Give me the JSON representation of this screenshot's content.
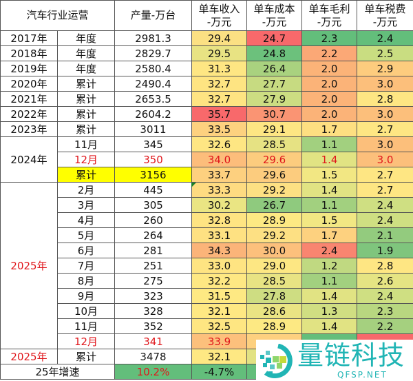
{
  "header": {
    "col1": "汽车行业运营",
    "col3": "产量-万台",
    "col4": [
      "单车收入",
      "-万元"
    ],
    "col5": [
      "单车成本",
      "-万元"
    ],
    "col6": [
      "单车毛利",
      "-万元"
    ],
    "col7": [
      "单车税费",
      "-万元"
    ]
  },
  "rows": [
    {
      "year": "2017年",
      "period": "年度",
      "output": "2981.3",
      "rev": "29.4",
      "cost": "24.7",
      "margin": "2.3",
      "tax": "2.4",
      "c": [
        "#fbe083",
        "#f8696b",
        "#63be7b",
        "#63be7b"
      ]
    },
    {
      "year": "2018年",
      "period": "年度",
      "output": "2829.7",
      "rev": "29.5",
      "cost": "24.8",
      "margin": "2.2",
      "tax": "2.5",
      "c": [
        "#e8e383",
        "#6cc17c",
        "#fba876",
        "#c9dd81"
      ]
    },
    {
      "year": "2019年",
      "period": "年度",
      "output": "2580.4",
      "rev": "31.3",
      "cost": "26.4",
      "margin": "2.0",
      "tax": "2.9",
      "c": [
        "#fee683",
        "#a9d27f",
        "#fbb378",
        "#fdcc7e"
      ]
    },
    {
      "year": "2020年",
      "period": "累计",
      "output": "2490.4",
      "rev": "32.7",
      "cost": "27.7",
      "margin": "2.0",
      "tax": "3.0",
      "c": [
        "#fee482",
        "#c7db81",
        "#fbb378",
        "#fcbf7b"
      ]
    },
    {
      "year": "2021年",
      "period": "累计",
      "output": "2653.5",
      "rev": "32.7",
      "cost": "27.9",
      "margin": "2.0",
      "tax": "2.8",
      "c": [
        "#fee482",
        "#ccdd82",
        "#fbb378",
        "#fee683"
      ]
    },
    {
      "year": "2022年",
      "period": "累计",
      "output": "2604.2",
      "rev": "35.7",
      "cost": "30.7",
      "margin": "2.0",
      "tax": "3.0",
      "c": [
        "#f8696b",
        "#fa9473",
        "#fbb378",
        "#fcbf7b"
      ]
    },
    {
      "year": "2023年",
      "period": "累计",
      "output": "3011",
      "rev": "33.5",
      "cost": "29.1",
      "margin": "1.7",
      "tax": "2.7",
      "c": [
        "#fdd17f",
        "#fde683",
        "#fedf81",
        "#fee683"
      ]
    }
  ],
  "rows2024": {
    "year": "2024年",
    "items": [
      {
        "period": "11月",
        "output": "345",
        "rev": "32.6",
        "cost": "28.5",
        "margin": "1.1",
        "tax": "3.0",
        "red": false,
        "c": [
          "#fee683",
          "#e6e283",
          "#a2d07f",
          "#fcbf7b"
        ]
      },
      {
        "period": "12月",
        "output": "350",
        "rev": "34.0",
        "cost": "29.6",
        "margin": "1.4",
        "tax": "3.0",
        "red": true,
        "c": [
          "#fcbd7b",
          "#fccc7e",
          "#e1e383",
          "#fcbf7b"
        ]
      },
      {
        "period": "累计",
        "output": "3156",
        "rev": "33.7",
        "cost": "29.6",
        "margin": "1.5",
        "tax": "2.7",
        "red": false,
        "hl": true,
        "c": [
          "#fdd07f",
          "#fccc7e",
          "#f2e783",
          "#fee683"
        ]
      }
    ]
  },
  "rows2025": {
    "year": "2025年",
    "items": [
      {
        "period": "2月",
        "output": "445",
        "rev": "33.3",
        "cost": "29.2",
        "margin": "1.4",
        "tax": "2.7",
        "c": [
          "#fedb81",
          "#fde083",
          "#e1e383",
          "#fee683"
        ]
      },
      {
        "period": "3月",
        "output": "305",
        "rev": "30.2",
        "cost": "26.7",
        "margin": "1.1",
        "tax": "2.4",
        "c": [
          "#eae583",
          "#8fca7e",
          "#a2d07f",
          "#cfdf82"
        ]
      },
      {
        "period": "4月",
        "output": "260",
        "rev": "32.8",
        "cost": "28.9",
        "margin": "1.5",
        "tax": "2.4",
        "c": [
          "#fee482",
          "#fde983",
          "#f2e783",
          "#cfdf82"
        ]
      },
      {
        "period": "5月",
        "output": "264",
        "rev": "33.1",
        "cost": "29.2",
        "margin": "1.7",
        "tax": "2.1",
        "c": [
          "#fee182",
          "#fde083",
          "#fdd17f",
          "#93cb7e"
        ]
      },
      {
        "period": "6月",
        "output": "281",
        "rev": "34.3",
        "cost": "30.0",
        "margin": "2.4",
        "tax": "1.9",
        "c": [
          "#fbb479",
          "#fcc07c",
          "#f98570",
          "#7fc57d"
        ]
      },
      {
        "period": "7月",
        "output": "251",
        "rev": "33.0",
        "cost": "29.0",
        "margin": "1.2",
        "tax": "2.8",
        "c": [
          "#fee482",
          "#fde783",
          "#c0d981",
          "#fee683"
        ]
      },
      {
        "period": "8月",
        "output": "275",
        "rev": "32.2",
        "cost": "28.5",
        "margin": "1.1",
        "tax": "2.6",
        "c": [
          "#fee883",
          "#e8e383",
          "#a2d07f",
          "#e5e483"
        ]
      },
      {
        "period": "9月",
        "output": "323",
        "rev": "31.5",
        "cost": "27.8",
        "margin": "1.4",
        "tax": "2.4",
        "c": [
          "#fee983",
          "#cedd82",
          "#e1e383",
          "#cfdf82"
        ]
      },
      {
        "period": "10月",
        "output": "328",
        "rev": "32.1",
        "cost": "28.6",
        "margin": "1.3",
        "tax": "2.3",
        "c": [
          "#fee883",
          "#eae483",
          "#d0de82",
          "#b8d780"
        ]
      },
      {
        "period": "11月",
        "output": "352",
        "rev": "32.5",
        "cost": "28.9",
        "margin": "1.4",
        "tax": "2.2",
        "c": [
          "#fee682",
          "#fde983",
          "#e1e383",
          "#a5d07f"
        ]
      },
      {
        "period": "12月",
        "output": "341",
        "rev": "33.9",
        "cost": "",
        "margin": "",
        "tax": "",
        "red": true,
        "c": [
          "#fcc07c",
          "#fdd07f",
          "#63be7b",
          "#f8696b"
        ]
      }
    ]
  },
  "total2025": {
    "year": "2025年",
    "period": "累计",
    "output": "3478",
    "rev": "32.1",
    "cost": "",
    "margin": "",
    "tax": "",
    "c": [
      "#fee883",
      "#e2e283",
      "#ffffff",
      "#ffffff"
    ]
  },
  "growth": {
    "label": "25年增速",
    "output": "10.2%",
    "rev": "-4.7%",
    "cost": "-",
    "margin": "",
    "tax": ""
  },
  "watermark": {
    "brand": "量链科技",
    "url": "QFSP.NET"
  },
  "colors": {
    "red_text": "#e0161b",
    "highlight": "#ffff00",
    "green": "#63be7b",
    "brand": "#21b5b5"
  }
}
